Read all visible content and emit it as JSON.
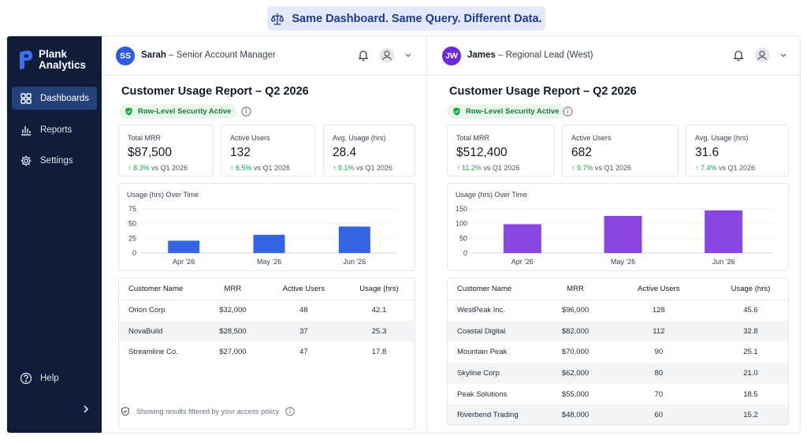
{
  "banner": {
    "text": "Same Dashboard. Same Query. Different Data.",
    "icon": "scale-icon"
  },
  "colors": {
    "sidebar_bg": "#0f1c3a",
    "sidebar_active": "#24427a",
    "blue_bar": "#3366e0",
    "purple_bar": "#8b45e0",
    "green": "#16a34a"
  },
  "sidebar": {
    "logo_line1": "Plank",
    "logo_line2": "Analytics",
    "items": [
      {
        "label": "Dashboards",
        "icon": "grid-icon",
        "active": true
      },
      {
        "label": "Reports",
        "icon": "bar-chart-icon",
        "active": false
      },
      {
        "label": "Settings",
        "icon": "gear-icon",
        "active": false
      }
    ],
    "help_label": "Help"
  },
  "left": {
    "user": {
      "initials": "SS",
      "name": "Sarah",
      "role": "– Senior Account Manager",
      "avatar_color": "#2f5be0"
    },
    "title": "Customer Usage Report – Q2 2026",
    "rls_badge": "Row-Level Security Active",
    "kpis": [
      {
        "label": "Total MRR",
        "value": "$87,500",
        "delta": "↑ 8.3%",
        "delta_suffix": "vs Q1 2026"
      },
      {
        "label": "Active Users",
        "value": "132",
        "delta": "↑ 6.5%",
        "delta_suffix": "vs Q1 2026"
      },
      {
        "label": "Avg. Usage (hrs)",
        "value": "28.4",
        "delta": "↑ 9.1%",
        "delta_suffix": "vs Q1 2026"
      }
    ],
    "table": {
      "headers": [
        "Customer Name",
        "MRR",
        "Active Users",
        "Usage (hrs)"
      ],
      "rows": [
        [
          "Orion Corp",
          "$32,000",
          "48",
          "42.1"
        ],
        [
          "NovaBuild",
          "$28,500",
          "37",
          "25.3"
        ],
        [
          "Streamline Co.",
          "$27,000",
          "47",
          "17.8"
        ]
      ]
    },
    "footer_note": "Showing results filtered by your access policy"
  },
  "right": {
    "user": {
      "initials": "JW",
      "name": "James",
      "role": "– Regional Lead (West)",
      "avatar_color": "#6d28d9"
    },
    "title": "Customer Usage Report – Q2 2026",
    "rls_badge": "Row-Level Security Active",
    "kpis": [
      {
        "label": "Total MRR",
        "value": "$512,400",
        "delta": "↑ 11.2%",
        "delta_suffix": "vs Q1 2026"
      },
      {
        "label": "Active Users",
        "value": "682",
        "delta": "↑ 9.7%",
        "delta_suffix": "vs Q1 2026"
      },
      {
        "label": "Avg. Usage (hrs)",
        "value": "31.6",
        "delta": "↑ 7.4%",
        "delta_suffix": "vs Q1 2026"
      }
    ],
    "table": {
      "headers": [
        "Customer Name",
        "MRR",
        "Active Users",
        "Usage (hrs)"
      ],
      "rows": [
        [
          "WestPeak Inc.",
          "$96,000",
          "128",
          "45.6"
        ],
        [
          "Coastal Digital",
          "$82,000",
          "112",
          "32.8"
        ],
        [
          "Mountain Peak",
          "$70,000",
          "90",
          "25.1"
        ],
        [
          "Skyline Corp",
          "$62,000",
          "80",
          "21.0"
        ],
        [
          "Peak Solutions",
          "$55,000",
          "70",
          "18.5"
        ],
        [
          "Riverbend Trading",
          "$48,000",
          "60",
          "15.2"
        ]
      ]
    }
  },
  "chart_data": [
    {
      "type": "bar",
      "title": "Usage (hrs) Over Time",
      "categories": [
        "Apr '26",
        "May '26",
        "Jun '26"
      ],
      "values": [
        21,
        31,
        45
      ],
      "ylim": [
        0,
        75
      ],
      "yticks": [
        0,
        25,
        50,
        75
      ],
      "color": "#3366e0"
    },
    {
      "type": "bar",
      "title": "Usage (hrs) Over Time",
      "categories": [
        "Apr '26",
        "May '26",
        "Jun '26"
      ],
      "values": [
        98,
        126,
        145
      ],
      "ylim": [
        0,
        150
      ],
      "yticks": [
        0,
        50,
        100,
        150
      ],
      "color": "#8b45e0"
    }
  ]
}
